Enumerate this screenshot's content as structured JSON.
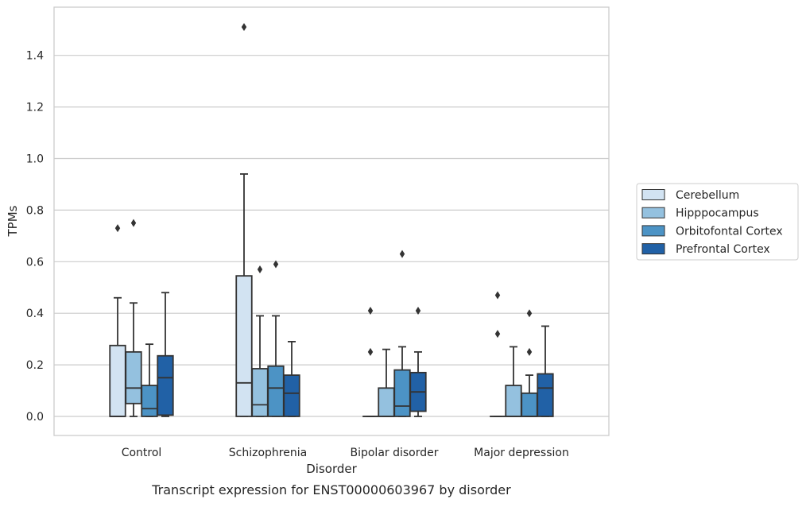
{
  "caption": "Transcript expression for ENST00000603967 by disorder",
  "colors": {
    "Cerebellum": "#d2e3f2",
    "Hipppocampus": "#94c1df",
    "Orbitofontal Cortex": "#4c93c5",
    "Prefrontal Cortex": "#2161a6",
    "edge": "#333333",
    "grid": "#cccccc"
  },
  "chart_data": {
    "type": "box",
    "title": "",
    "caption": "Transcript expression for ENST00000603967 by disorder",
    "xlabel": "Disorder",
    "ylabel": "TPMs",
    "ylim": [
      -0.07,
      1.59
    ],
    "yticks": [
      "0.0",
      "0.2",
      "0.4",
      "0.6",
      "0.8",
      "1.0",
      "1.2",
      "1.4"
    ],
    "categories": [
      "Control",
      "Schizophrenia",
      "Bipolar disorder",
      "Major depression"
    ],
    "grid": "horizontal",
    "legend_position": "right",
    "series": [
      {
        "name": "Cerebellum",
        "boxes": [
          {
            "whislo": 0.0,
            "q1": 0.0,
            "med": 0.0,
            "q3": 0.275,
            "whishi": 0.46,
            "fliers": [
              0.73
            ]
          },
          {
            "whislo": 0.0,
            "q1": 0.0,
            "med": 0.13,
            "q3": 0.545,
            "whishi": 0.94,
            "fliers": [
              1.51
            ]
          },
          {
            "whislo": 0.0,
            "q1": 0.0,
            "med": 0.0,
            "q3": 0.0,
            "whishi": 0.0,
            "fliers": [
              0.25,
              0.41
            ]
          },
          {
            "whislo": 0.0,
            "q1": 0.0,
            "med": 0.0,
            "q3": 0.0,
            "whishi": 0.0,
            "fliers": [
              0.32,
              0.47
            ]
          }
        ]
      },
      {
        "name": "Hipppocampus",
        "boxes": [
          {
            "whislo": 0.0,
            "q1": 0.05,
            "med": 0.11,
            "q3": 0.25,
            "whishi": 0.44,
            "fliers": [
              0.75
            ]
          },
          {
            "whislo": 0.0,
            "q1": 0.0,
            "med": 0.045,
            "q3": 0.185,
            "whishi": 0.39,
            "fliers": [
              0.57
            ]
          },
          {
            "whislo": 0.0,
            "q1": 0.0,
            "med": 0.0,
            "q3": 0.11,
            "whishi": 0.26,
            "fliers": []
          },
          {
            "whislo": 0.0,
            "q1": 0.0,
            "med": 0.0,
            "q3": 0.12,
            "whishi": 0.27,
            "fliers": []
          }
        ]
      },
      {
        "name": "Orbitofontal Cortex",
        "boxes": [
          {
            "whislo": 0.0,
            "q1": 0.0,
            "med": 0.03,
            "q3": 0.12,
            "whishi": 0.28,
            "fliers": []
          },
          {
            "whislo": 0.0,
            "q1": 0.0,
            "med": 0.11,
            "q3": 0.195,
            "whishi": 0.39,
            "fliers": [
              0.59
            ]
          },
          {
            "whislo": 0.0,
            "q1": 0.0,
            "med": 0.04,
            "q3": 0.18,
            "whishi": 0.27,
            "fliers": [
              0.63
            ]
          },
          {
            "whislo": 0.0,
            "q1": 0.0,
            "med": 0.0,
            "q3": 0.09,
            "whishi": 0.16,
            "fliers": [
              0.25,
              0.4
            ]
          }
        ]
      },
      {
        "name": "Prefrontal Cortex",
        "boxes": [
          {
            "whislo": 0.0,
            "q1": 0.005,
            "med": 0.15,
            "q3": 0.235,
            "whishi": 0.48,
            "fliers": []
          },
          {
            "whislo": 0.0,
            "q1": 0.0,
            "med": 0.09,
            "q3": 0.16,
            "whishi": 0.29,
            "fliers": []
          },
          {
            "whislo": 0.0,
            "q1": 0.02,
            "med": 0.095,
            "q3": 0.17,
            "whishi": 0.25,
            "fliers": [
              0.41
            ]
          },
          {
            "whislo": 0.0,
            "q1": 0.0,
            "med": 0.11,
            "q3": 0.165,
            "whishi": 0.35,
            "fliers": []
          }
        ]
      }
    ]
  }
}
